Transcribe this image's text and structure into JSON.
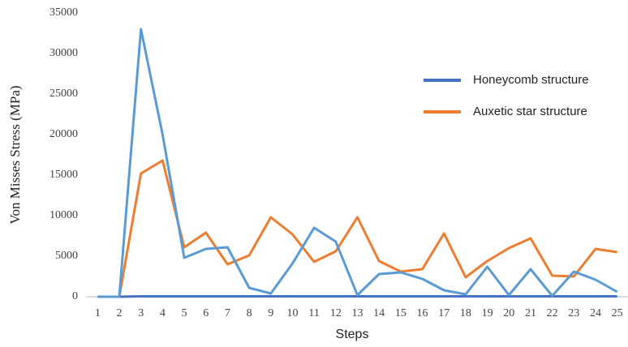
{
  "chart_data": {
    "type": "line",
    "x_label": "Steps",
    "y_label": "Von Misses Stress (MPa)",
    "categories": [
      "1",
      "2",
      "3",
      "4",
      "5",
      "6",
      "7",
      "8",
      "9",
      "10",
      "11",
      "12",
      "13",
      "14",
      "15",
      "16",
      "17",
      "18",
      "19",
      "20",
      "21",
      "22",
      "23",
      "24",
      "25"
    ],
    "series": [
      {
        "name": "Honeycomb structure",
        "color": "#4472c4",
        "values": [
          0,
          0,
          50,
          50,
          50,
          50,
          50,
          50,
          50,
          50,
          50,
          50,
          50,
          50,
          50,
          50,
          50,
          50,
          50,
          50,
          50,
          50,
          50,
          50,
          50
        ]
      },
      {
        "name": "Auxetic star structure",
        "color": "#ed7d31",
        "values": [
          0,
          0,
          15200,
          16800,
          6100,
          7900,
          4000,
          5100,
          9800,
          7700,
          4300,
          5600,
          9800,
          4400,
          3100,
          3400,
          7800,
          2400,
          4400,
          6000,
          7200,
          2600,
          2500,
          5900,
          5500
        ]
      },
      {
        "color": "#5b9bd5",
        "values": [
          0,
          0,
          33000,
          20000,
          4800,
          5900,
          6100,
          1100,
          400,
          4100,
          8500,
          6800,
          200,
          2800,
          3000,
          2200,
          800,
          300,
          3700,
          200,
          3400,
          100,
          3100,
          2100,
          600
        ]
      }
    ],
    "ylim": [
      0,
      35000
    ],
    "yticks": [
      0,
      5000,
      10000,
      15000,
      20000,
      25000,
      30000,
      35000
    ],
    "grid": false
  }
}
